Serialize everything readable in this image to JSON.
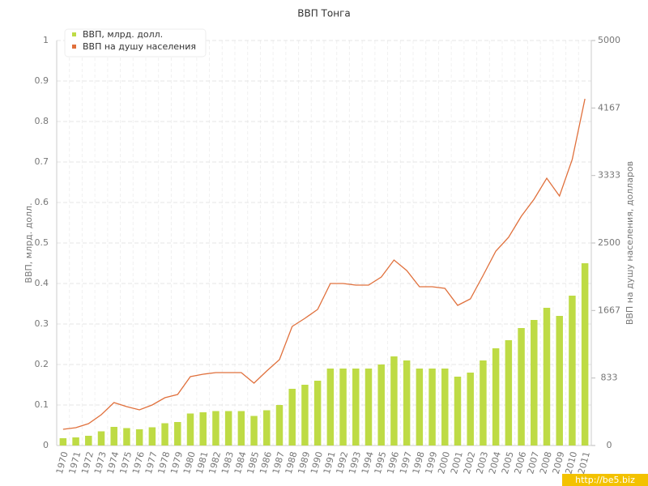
{
  "chart_data": {
    "type": "bar-line",
    "title": "ВВП Тонга",
    "y_label": "ВВП, млрд. долл.",
    "y2_label": "ВВП на душу населения, долларов",
    "watermark": "http://be5.biz",
    "categories": [
      "1970",
      "1971",
      "1972",
      "1973",
      "1974",
      "1975",
      "1976",
      "1977",
      "1978",
      "1979",
      "1980",
      "1981",
      "1982",
      "1983",
      "1984",
      "1985",
      "1986",
      "1987",
      "1988",
      "1989",
      "1990",
      "1991",
      "1992",
      "1993",
      "1994",
      "1995",
      "1996",
      "1997",
      "1998",
      "1999",
      "2000",
      "2001",
      "2002",
      "2003",
      "2004",
      "2005",
      "2006",
      "2007",
      "2008",
      "2009",
      "2010",
      "2011"
    ],
    "series": [
      {
        "name": "ВВП, млрд. долл.",
        "type": "bar",
        "color": "#bedb45",
        "values": [
          0.018,
          0.02,
          0.024,
          0.035,
          0.046,
          0.043,
          0.04,
          0.045,
          0.055,
          0.058,
          0.079,
          0.082,
          0.085,
          0.085,
          0.085,
          0.073,
          0.087,
          0.1,
          0.14,
          0.15,
          0.16,
          0.19,
          0.19,
          0.19,
          0.19,
          0.2,
          0.22,
          0.21,
          0.19,
          0.19,
          0.19,
          0.17,
          0.18,
          0.21,
          0.24,
          0.26,
          0.29,
          0.31,
          0.34,
          0.32,
          0.37,
          0.45
        ]
      },
      {
        "name": "ВВП на душу населения",
        "type": "line",
        "axis": "y2",
        "color": "#e0703c",
        "values": [
          200,
          220,
          270,
          380,
          530,
          480,
          440,
          500,
          590,
          630,
          850,
          880,
          900,
          900,
          900,
          770,
          920,
          1060,
          1470,
          1570,
          1680,
          2000,
          2000,
          1980,
          1980,
          2080,
          2290,
          2160,
          1960,
          1960,
          1940,
          1730,
          1810,
          2100,
          2400,
          2570,
          2830,
          3040,
          3300,
          3080,
          3530,
          4280
        ]
      }
    ],
    "ylim": [
      0,
      1
    ],
    "yticks": [
      0,
      0.1,
      0.2,
      0.3,
      0.4,
      0.5,
      0.6,
      0.7,
      0.8,
      0.9,
      1
    ],
    "y2lim": [
      0,
      5000
    ],
    "y2ticks": [
      0,
      833,
      1667,
      2500,
      3333,
      4167,
      5000
    ],
    "grid": true,
    "legend": "top-left"
  }
}
